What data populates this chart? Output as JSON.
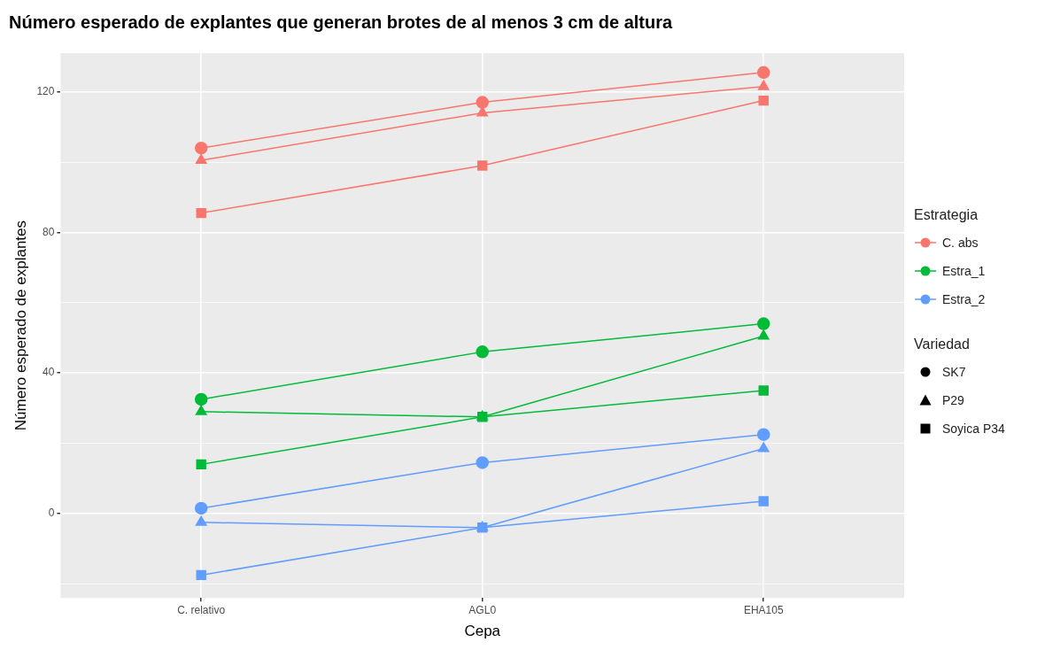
{
  "chart_data": {
    "type": "line",
    "title": "Número esperado de explantes que generan brotes de al menos 3 cm de altura",
    "xlabel": "Cepa",
    "ylabel": "Número esperado de explantes",
    "categories": [
      "C. relativo",
      "AGL0",
      "EHA105"
    ],
    "ylim": [
      -24,
      131
    ],
    "yticks": [
      {
        "value": -20,
        "label": null
      },
      0,
      {
        "value": 20,
        "label": null
      },
      40,
      {
        "value": 60,
        "label": null
      },
      80,
      {
        "value": 100,
        "label": null
      },
      120
    ],
    "grid": true,
    "legend": "right",
    "legend_title": "Estrategia",
    "annotations": [
      "Variedad",
      "SK7",
      "P29",
      "Soyica P34"
    ],
    "series": [
      {
        "name": "C. abs",
        "color": "#f8766d",
        "marker": "circle",
        "values": [
          104,
          117,
          125.5
        ]
      },
      {
        "color": "#f8766d",
        "marker": "triangle",
        "values": [
          100.5,
          114,
          121.5
        ]
      },
      {
        "color": "#f8766d",
        "marker": "square",
        "values": [
          85.5,
          99,
          117.5
        ]
      },
      {
        "name": "Estra_1",
        "color": "#00ba38",
        "marker": "circle",
        "values": [
          32.5,
          46,
          54
        ]
      },
      {
        "color": "#00ba38",
        "marker": "triangle",
        "values": [
          29,
          27.5,
          50.5
        ]
      },
      {
        "color": "#00ba38",
        "marker": "square",
        "values": [
          14,
          27.5,
          35
        ]
      },
      {
        "name": "Estra_2",
        "color": "#619cff",
        "marker": "circle",
        "values": [
          1.5,
          14.5,
          22.5
        ]
      },
      {
        "color": "#619cff",
        "marker": "triangle",
        "values": [
          -2.5,
          -4,
          18.5
        ]
      },
      {
        "color": "#619cff",
        "marker": "square",
        "values": [
          -17.5,
          -4,
          3.5
        ]
      }
    ]
  }
}
